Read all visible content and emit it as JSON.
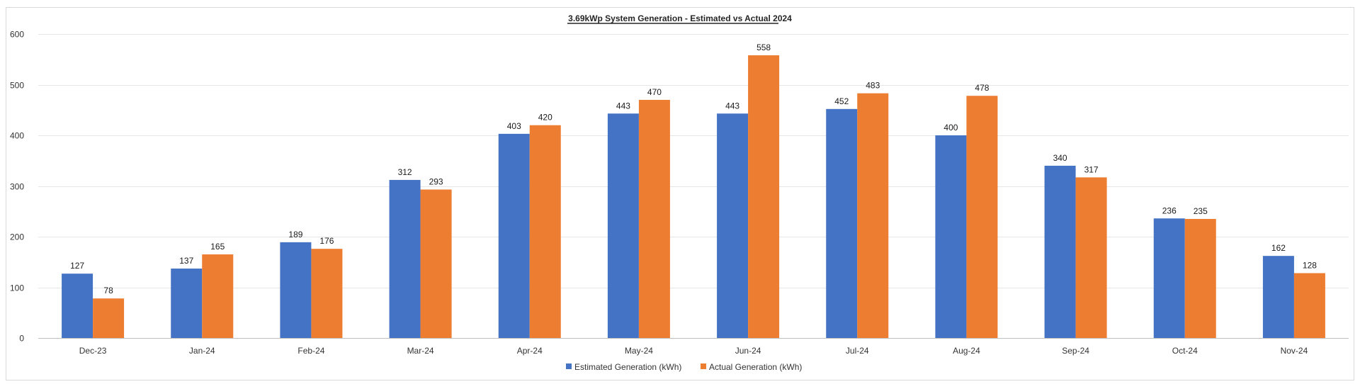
{
  "chart_data": {
    "type": "bar",
    "title": "3.69kWp System Generation - Estimated vs Actual 2024",
    "xlabel": "",
    "ylabel": "",
    "ylim": [
      0,
      600
    ],
    "yticks": [
      "0",
      "100",
      "200",
      "300",
      "400",
      "500",
      "600"
    ],
    "ytick_values": [
      0,
      100,
      200,
      300,
      400,
      500,
      600
    ],
    "grid": true,
    "legend_position": "bottom",
    "categories": [
      "Dec-23",
      "Jan-24",
      "Feb-24",
      "Mar-24",
      "Apr-24",
      "May-24",
      "Jun-24",
      "Jul-24",
      "Aug-24",
      "Sep-24",
      "Oct-24",
      "Nov-24"
    ],
    "series": [
      {
        "name": "Estimated Generation (kWh)",
        "color": "#4472C4",
        "values": [
          127,
          137,
          189,
          312,
          403,
          443,
          443,
          452,
          400,
          340,
          236,
          162
        ],
        "labels": [
          "127",
          "137",
          "189",
          "312",
          "403",
          "443",
          "443",
          "452",
          "400",
          "340",
          "236",
          "162"
        ]
      },
      {
        "name": "Actual Generation (kWh)",
        "color": "#ED7D31",
        "values": [
          78,
          165,
          176,
          293,
          420,
          470,
          558,
          483,
          478,
          317,
          235,
          128
        ],
        "labels": [
          "78",
          "165",
          "176",
          "293",
          "420",
          "470",
          "558",
          "483",
          "478",
          "317",
          "235",
          "128"
        ]
      }
    ]
  }
}
